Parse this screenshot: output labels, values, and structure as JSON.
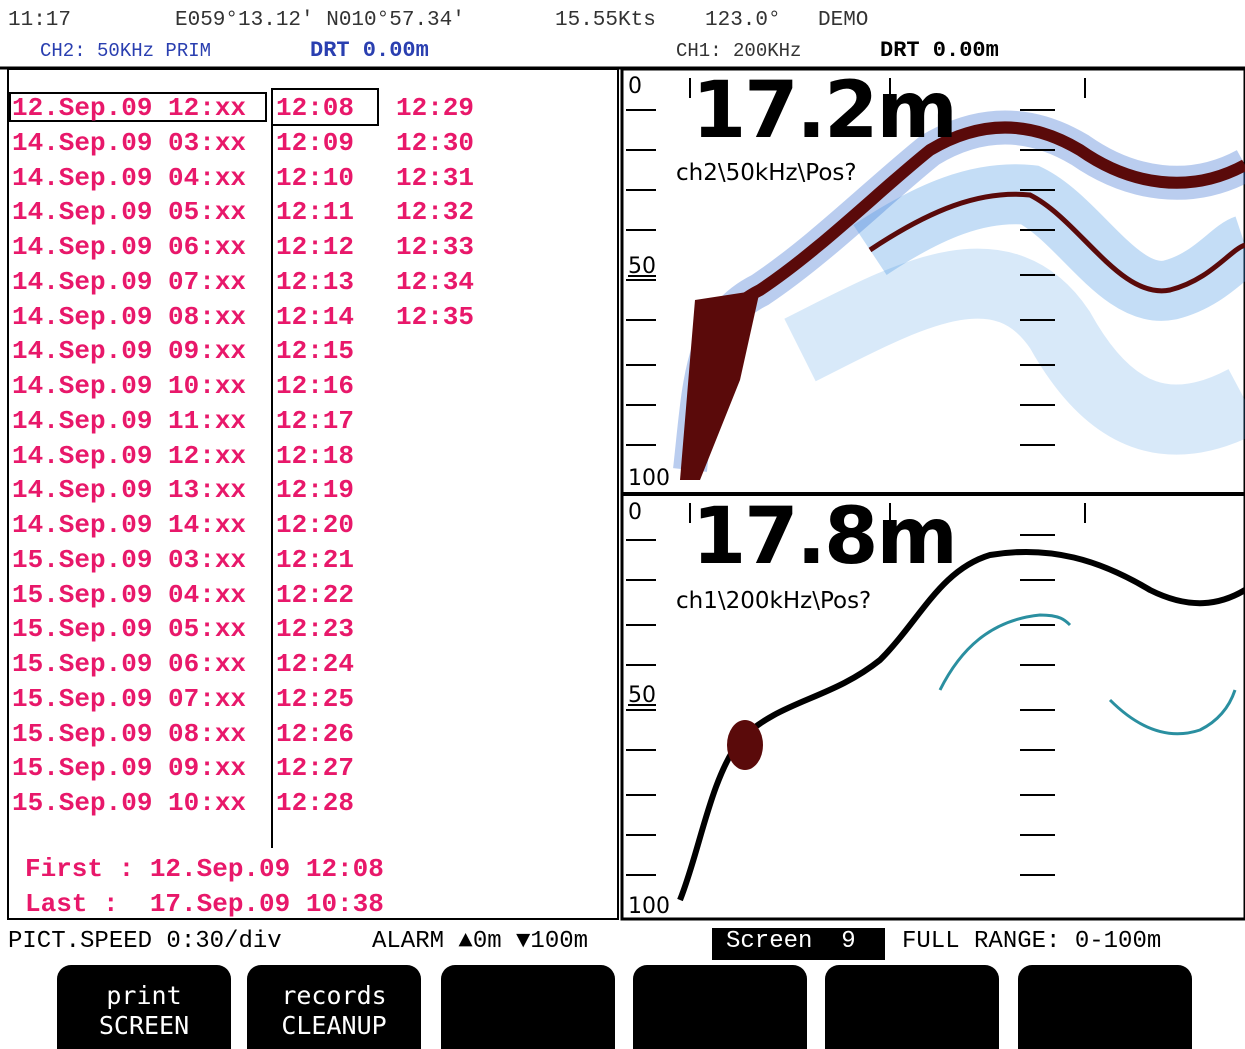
{
  "header": {
    "time": "11:17",
    "position": "E059°13.12′ N010°57.34′",
    "speed": "15.55Kts",
    "heading": "123.0°",
    "mode": "DEMO",
    "ch2": {
      "label": "CH2: 50KHz PRIM",
      "drt": "DRT 0.00m"
    },
    "ch1": {
      "label": "CH1: 200KHz",
      "drt": "DRT 0.00m"
    }
  },
  "records": {
    "dates": [
      "12.Sep.09 12:xx",
      "14.Sep.09 03:xx",
      "14.Sep.09 04:xx",
      "14.Sep.09 05:xx",
      "14.Sep.09 06:xx",
      "14.Sep.09 07:xx",
      "14.Sep.09 08:xx",
      "14.Sep.09 09:xx",
      "14.Sep.09 10:xx",
      "14.Sep.09 11:xx",
      "14.Sep.09 12:xx",
      "14.Sep.09 13:xx",
      "14.Sep.09 14:xx",
      "15.Sep.09 03:xx",
      "15.Sep.09 04:xx",
      "15.Sep.09 05:xx",
      "15.Sep.09 06:xx",
      "15.Sep.09 07:xx",
      "15.Sep.09 08:xx",
      "15.Sep.09 09:xx",
      "15.Sep.09 10:xx"
    ],
    "times": [
      "12:08",
      "12:09",
      "12:10",
      "12:11",
      "12:12",
      "12:13",
      "12:14",
      "12:15",
      "12:16",
      "12:17",
      "12:18",
      "12:19",
      "12:20",
      "12:21",
      "12:22",
      "12:23",
      "12:24",
      "12:25",
      "12:26",
      "12:27",
      "12:28"
    ],
    "times_more": [
      "12:29",
      "12:30",
      "12:31",
      "12:32",
      "12:33",
      "12:34",
      "12:35"
    ],
    "first": "First : 12.Sep.09 12:08",
    "last": "Last :  17.Sep.09 10:38"
  },
  "echograms": [
    {
      "depth": "17.2m",
      "channel": "ch2\\50kHz\\Pos?",
      "scale": [
        "0",
        "50",
        "100"
      ]
    },
    {
      "depth": "17.8m",
      "channel": "ch1\\200kHz\\Pos?",
      "scale": [
        "0",
        "50",
        "100"
      ]
    }
  ],
  "status": {
    "pict_speed": "PICT.SPEED 0:30/div",
    "alarm": "ALARM ▲0m ▼100m",
    "screen": "Screen  9",
    "range": "FULL RANGE: 0-100m"
  },
  "buttons": [
    {
      "line1": "print",
      "line2": "SCREEN"
    },
    {
      "line1": "records",
      "line2": "CLEANUP"
    }
  ]
}
